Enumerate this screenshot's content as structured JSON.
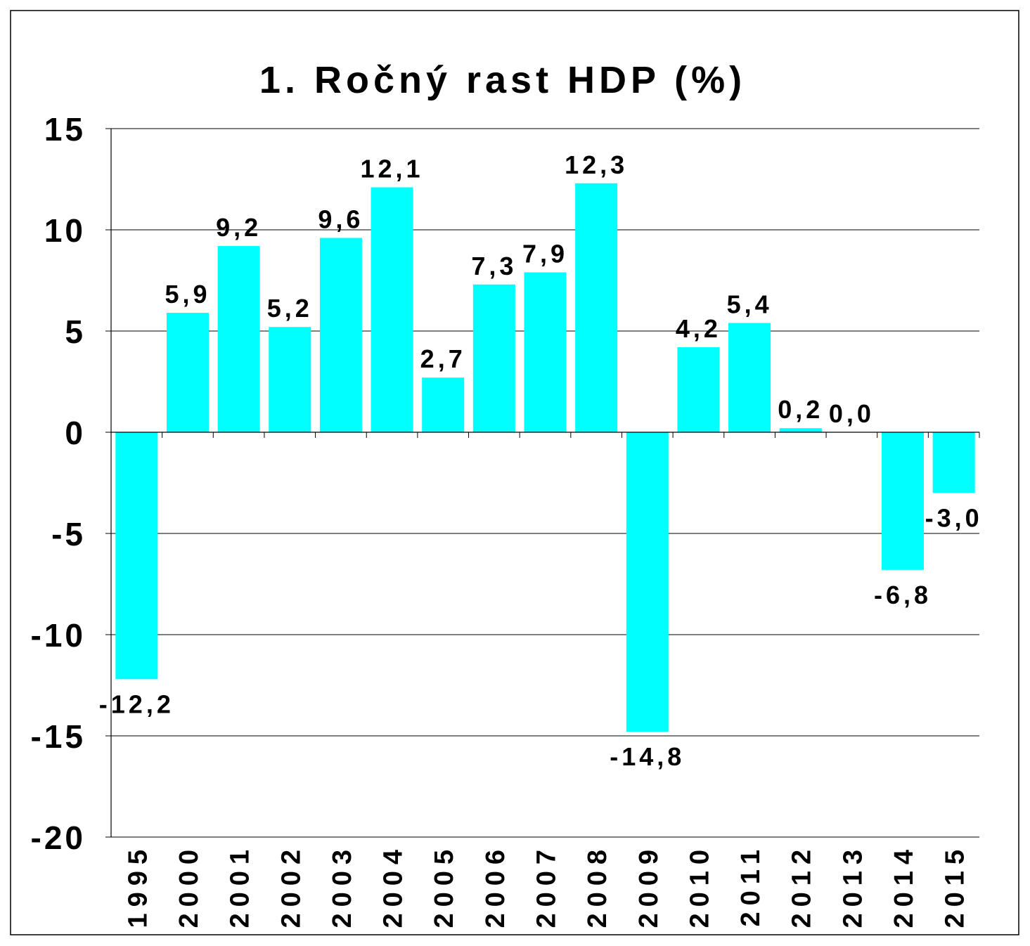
{
  "chart_data": {
    "type": "bar",
    "title": "1. Ročný rast HDP (%)",
    "xlabel": "",
    "ylabel": "",
    "ylim": [
      -20,
      15
    ],
    "yticks": [
      15,
      10,
      5,
      0,
      -5,
      -10,
      -15,
      -20
    ],
    "ytick_labels": [
      "15",
      "10",
      "5",
      "0",
      "-5",
      "-10",
      "-15",
      "-20"
    ],
    "grid": true,
    "bar_color": "#00FFFF",
    "categories": [
      "1995",
      "2000",
      "2001",
      "2002",
      "2003",
      "2004",
      "2005",
      "2006",
      "2007",
      "2008",
      "2009",
      "2010",
      "2011",
      "2012",
      "2013",
      "2014",
      "2015"
    ],
    "values": [
      -12.2,
      5.9,
      9.2,
      5.2,
      9.6,
      12.1,
      2.7,
      7.3,
      7.9,
      12.3,
      -14.8,
      4.2,
      5.4,
      0.2,
      0.0,
      -6.8,
      -3.0
    ],
    "data_labels": [
      "-12,2",
      "5,9",
      "9,2",
      "5,2",
      "9,6",
      "12,1",
      "2,7",
      "7,3",
      "7,9",
      "12,3",
      "-14,8",
      "4,2",
      "5,4",
      "0,2",
      "0,0",
      "-6,8",
      "-3,0"
    ]
  }
}
